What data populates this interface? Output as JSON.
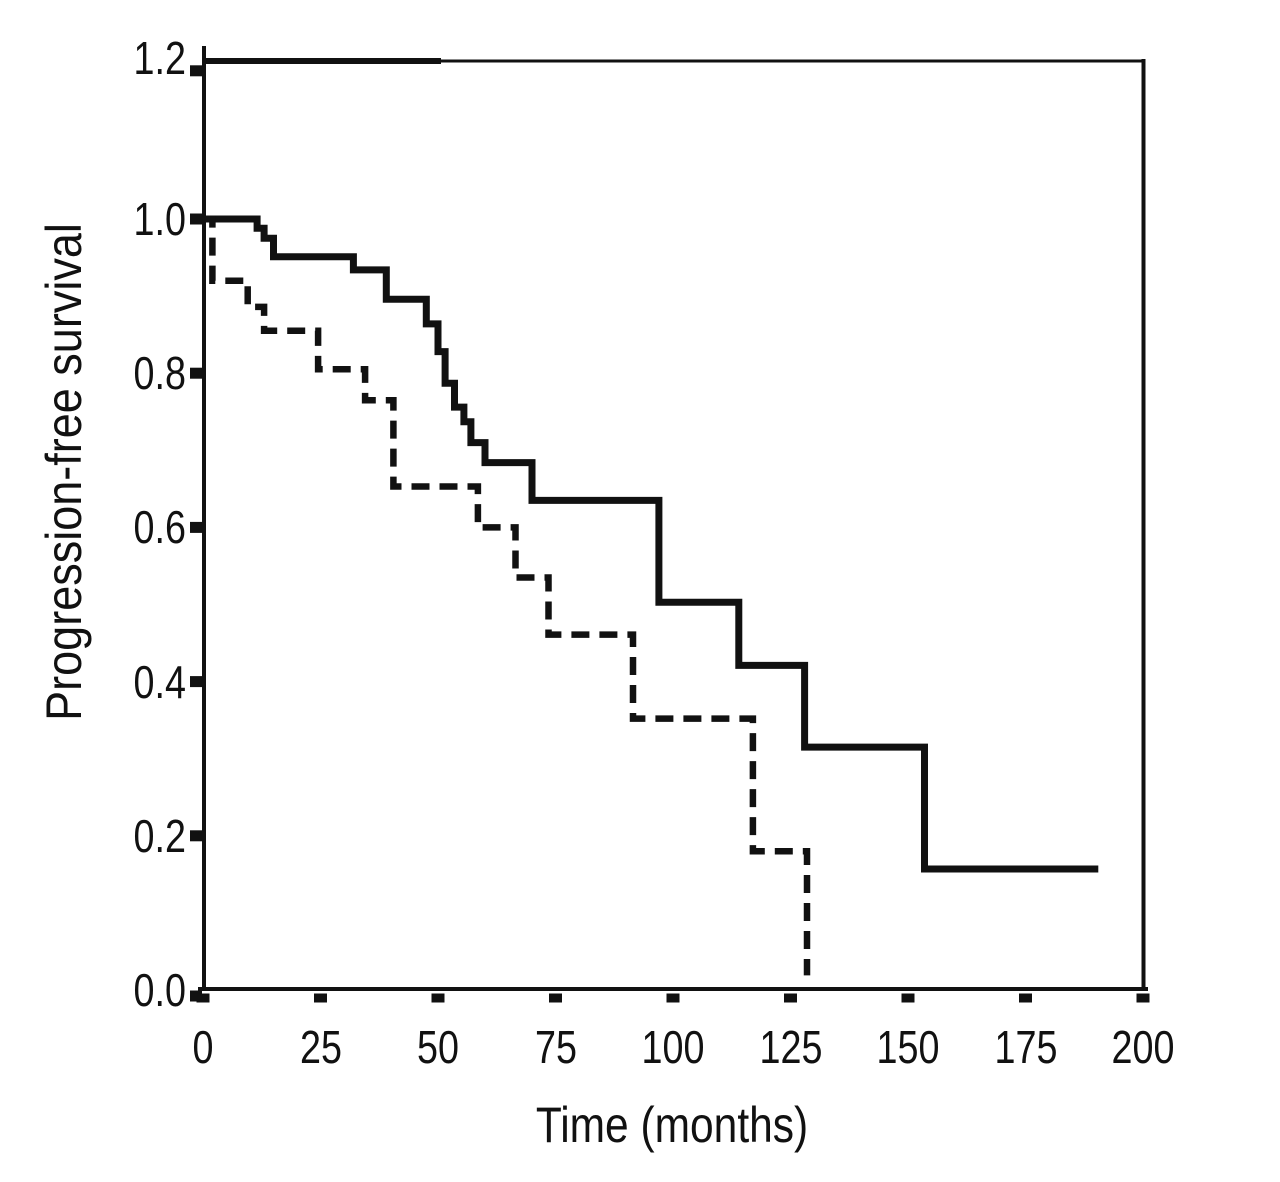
{
  "figure": {
    "background": "#ffffff",
    "ink_color": "#111111"
  },
  "chart_data": {
    "type": "line",
    "subtype": "kaplan_meier_step",
    "title": "",
    "xlabel": "Time (months)",
    "ylabel": "Progression-free survival",
    "xlim": [
      0,
      200
    ],
    "ylim": [
      0.0,
      1.2
    ],
    "grid": false,
    "legend": "none",
    "x_ticks": {
      "values": [
        0,
        25,
        50,
        75,
        100,
        125,
        150,
        175,
        200
      ],
      "labels": [
        "0",
        "25",
        "50",
        "75",
        "100",
        "125",
        "150",
        "175",
        "200"
      ]
    },
    "y_ticks": {
      "values": [
        0.0,
        0.2,
        0.4,
        0.6,
        0.8,
        1.0,
        1.2
      ],
      "labels": [
        "0.0",
        "0.2",
        "0.4",
        "0.6",
        "0.8",
        "1.0",
        "1.2"
      ]
    },
    "series": [
      {
        "name": "solid-curve",
        "line_style": "solid",
        "color": "#111111",
        "points": [
          [
            0,
            1.0
          ],
          [
            11.5,
            1.0
          ],
          [
            11.5,
            0.988
          ],
          [
            13,
            0.988
          ],
          [
            13,
            0.975
          ],
          [
            15,
            0.975
          ],
          [
            15,
            0.951
          ],
          [
            32,
            0.951
          ],
          [
            32,
            0.934
          ],
          [
            39,
            0.934
          ],
          [
            39,
            0.896
          ],
          [
            47.5,
            0.896
          ],
          [
            47.5,
            0.864
          ],
          [
            50,
            0.864
          ],
          [
            50,
            0.828
          ],
          [
            51.5,
            0.828
          ],
          [
            51.5,
            0.787
          ],
          [
            53.5,
            0.787
          ],
          [
            53.5,
            0.756
          ],
          [
            55.5,
            0.756
          ],
          [
            55.5,
            0.737
          ],
          [
            57,
            0.737
          ],
          [
            57,
            0.71
          ],
          [
            60,
            0.71
          ],
          [
            60,
            0.684
          ],
          [
            70,
            0.684
          ],
          [
            70,
            0.635
          ],
          [
            97,
            0.635
          ],
          [
            97,
            0.503
          ],
          [
            114,
            0.503
          ],
          [
            114,
            0.421
          ],
          [
            128,
            0.421
          ],
          [
            128,
            0.315
          ],
          [
            153.5,
            0.315
          ],
          [
            153.5,
            0.157
          ],
          [
            190.5,
            0.157
          ]
        ]
      },
      {
        "name": "dashed-curve",
        "line_style": "dashed",
        "color": "#111111",
        "points": [
          [
            0,
            1.0
          ],
          [
            2,
            1.0
          ],
          [
            2,
            0.92
          ],
          [
            9.5,
            0.92
          ],
          [
            9.5,
            0.886
          ],
          [
            13,
            0.886
          ],
          [
            13,
            0.855
          ],
          [
            24.5,
            0.855
          ],
          [
            24.5,
            0.805
          ],
          [
            34.5,
            0.805
          ],
          [
            34.5,
            0.765
          ],
          [
            40.5,
            0.765
          ],
          [
            40.5,
            0.653
          ],
          [
            58.5,
            0.653
          ],
          [
            58.5,
            0.6
          ],
          [
            66.5,
            0.6
          ],
          [
            66.5,
            0.535
          ],
          [
            73.5,
            0.535
          ],
          [
            73.5,
            0.461
          ],
          [
            91.5,
            0.461
          ],
          [
            91.5,
            0.352
          ],
          [
            117,
            0.352
          ],
          [
            117,
            0.18
          ],
          [
            128.5,
            0.18
          ],
          [
            128.5,
            0.019
          ]
        ]
      }
    ]
  }
}
